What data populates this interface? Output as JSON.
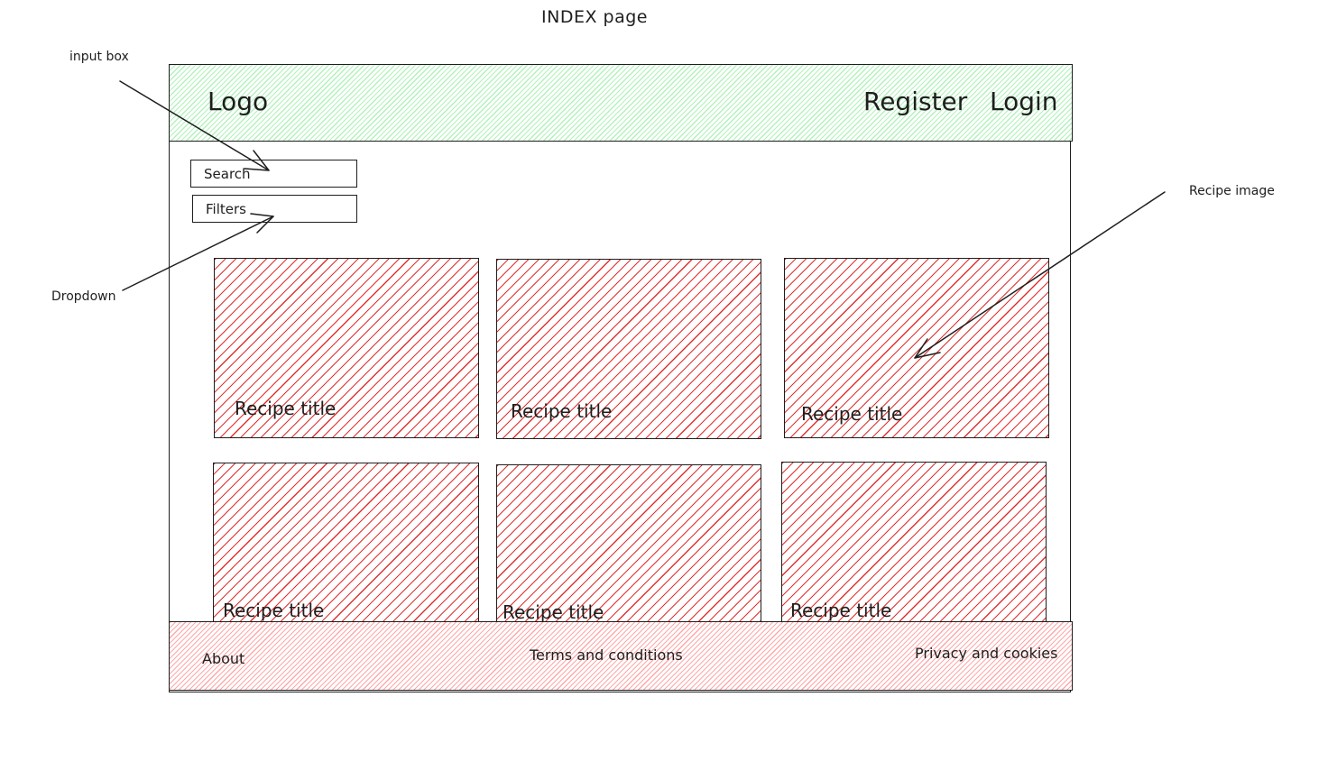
{
  "page_title": "INDEX page",
  "header": {
    "logo": "Logo",
    "register": "Register",
    "login": "Login"
  },
  "search": {
    "label": "Search"
  },
  "filters": {
    "label": "Filters"
  },
  "recipes": [
    {
      "title": "Recipe title"
    },
    {
      "title": "Recipe title"
    },
    {
      "title": "Recipe title"
    },
    {
      "title": "Recipe title"
    },
    {
      "title": "Recipe title"
    },
    {
      "title": "Recipe title"
    }
  ],
  "footer": {
    "about": "About",
    "terms": "Terms and conditions",
    "privacy": "Privacy and cookies"
  },
  "annotations": {
    "input_box": "input box",
    "dropdown": "Dropdown",
    "recipe_image": "Recipe image"
  },
  "colors": {
    "header_hatch": "#b2f2bb",
    "card_hatch": "#e03131",
    "footer_hatch": "#ffa8a8",
    "stroke": "#1e1e1e"
  }
}
